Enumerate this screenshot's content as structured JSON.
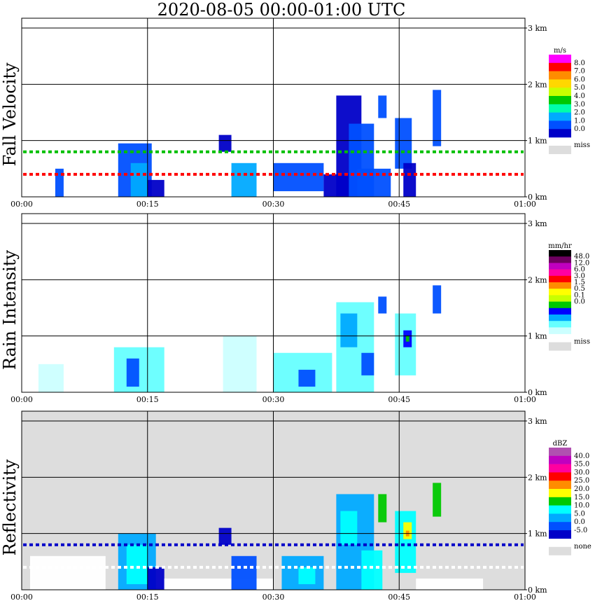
{
  "title": "2020-08-05   00:00-01:00 UTC",
  "chart_data": [
    {
      "type": "heatmap",
      "ylabel": "Fall Velocity",
      "x_ticks": [
        "00:00",
        "00:15",
        "00:30",
        "00:45",
        "01:00"
      ],
      "y_ticks": [
        "0 km",
        "1 km",
        "2 km",
        "3 km"
      ],
      "xlim": [
        0,
        60
      ],
      "ylim": [
        0,
        3
      ],
      "grid": true,
      "background": "#ffffff",
      "colorbar": {
        "unit": "m/s",
        "labels": [
          "8.0",
          "7.0",
          "6.0",
          "5.0",
          "4.0",
          "3.0",
          "2.0",
          "1.0",
          "0.0"
        ],
        "colors": [
          "#ff00ff",
          "#ff0000",
          "#ff8c00",
          "#ffd700",
          "#c8ff00",
          "#00c800",
          "#00ffaa",
          "#00aaff",
          "#0050ff",
          "#0000c8"
        ],
        "missing_label": "miss",
        "missing_color": "#dddddd"
      },
      "bands": [
        {
          "y": 0.4,
          "color": "#ff0000",
          "start": 0,
          "end": 60
        },
        {
          "y": 0.8,
          "color": "#00c000",
          "start": 0,
          "end": 60
        }
      ],
      "cells": [
        {
          "t": [
            11.5,
            15.5
          ],
          "h": [
            0,
            0.95
          ],
          "color": "#0050ff"
        },
        {
          "t": [
            13,
            15
          ],
          "h": [
            0,
            0.6
          ],
          "color": "#00aaff"
        },
        {
          "t": [
            15,
            17
          ],
          "h": [
            0,
            0.3
          ],
          "color": "#0000c8"
        },
        {
          "t": [
            4,
            5
          ],
          "h": [
            0,
            0.5
          ],
          "color": "#0050ff"
        },
        {
          "t": [
            23.5,
            25
          ],
          "h": [
            0.8,
            1.1
          ],
          "color": "#0000c8"
        },
        {
          "t": [
            25,
            28
          ],
          "h": [
            0,
            0.6
          ],
          "color": "#00aaff"
        },
        {
          "t": [
            30,
            36
          ],
          "h": [
            0.1,
            0.6
          ],
          "color": "#0050ff"
        },
        {
          "t": [
            36,
            39
          ],
          "h": [
            0,
            0.4
          ],
          "color": "#0000c8"
        },
        {
          "t": [
            37.5,
            40.5
          ],
          "h": [
            0,
            1.8
          ],
          "color": "#0000c8"
        },
        {
          "t": [
            39,
            42
          ],
          "h": [
            0,
            1.3
          ],
          "color": "#0050ff"
        },
        {
          "t": [
            40,
            44
          ],
          "h": [
            0,
            0.5
          ],
          "color": "#0050ff"
        },
        {
          "t": [
            42.5,
            43.5
          ],
          "h": [
            1.4,
            1.8
          ],
          "color": "#0050ff"
        },
        {
          "t": [
            44.5,
            46.5
          ],
          "h": [
            0.5,
            1.4
          ],
          "color": "#0050ff"
        },
        {
          "t": [
            45.5,
            47
          ],
          "h": [
            0,
            0.6
          ],
          "color": "#0000c8"
        },
        {
          "t": [
            49,
            50
          ],
          "h": [
            0.9,
            1.9
          ],
          "color": "#0050ff"
        }
      ]
    },
    {
      "type": "heatmap",
      "ylabel": "Rain Intensity",
      "x_ticks": [
        "00:00",
        "00:15",
        "00:30",
        "00:45",
        "01:00"
      ],
      "y_ticks": [
        "0 km",
        "1 km",
        "2 km",
        "3 km"
      ],
      "xlim": [
        0,
        60
      ],
      "ylim": [
        0,
        3
      ],
      "grid": true,
      "background": "#ffffff",
      "colorbar": {
        "unit": "mm/hr",
        "labels": [
          "48.0",
          "12.0",
          "6.0",
          "3.0",
          "1.5",
          "0.5",
          "0.1",
          "0.0"
        ],
        "colors": [
          "#000000",
          "#6e0060",
          "#c000c0",
          "#ff00a0",
          "#ff0000",
          "#ff8c00",
          "#ffff00",
          "#c8ff00",
          "#00c800",
          "#0000ff",
          "#00aaff",
          "#66ffff",
          "#ccffff"
        ],
        "missing_label": "miss",
        "missing_color": "#dddddd"
      },
      "bands": [],
      "cells": [
        {
          "t": [
            11,
            17
          ],
          "h": [
            0,
            0.8
          ],
          "color": "#66ffff"
        },
        {
          "t": [
            12.5,
            14
          ],
          "h": [
            0.1,
            0.6
          ],
          "color": "#0050ff"
        },
        {
          "t": [
            2,
            5
          ],
          "h": [
            0,
            0.5
          ],
          "color": "#ccffff"
        },
        {
          "t": [
            24,
            28
          ],
          "h": [
            0,
            1.0
          ],
          "color": "#ccffff"
        },
        {
          "t": [
            30,
            37
          ],
          "h": [
            0,
            0.7
          ],
          "color": "#66ffff"
        },
        {
          "t": [
            33,
            35
          ],
          "h": [
            0.1,
            0.4
          ],
          "color": "#0050ff"
        },
        {
          "t": [
            37.5,
            42
          ],
          "h": [
            0,
            1.6
          ],
          "color": "#66ffff"
        },
        {
          "t": [
            38,
            40
          ],
          "h": [
            0.8,
            1.4
          ],
          "color": "#00aaff"
        },
        {
          "t": [
            40.5,
            42
          ],
          "h": [
            0.3,
            0.7
          ],
          "color": "#0050ff"
        },
        {
          "t": [
            42.5,
            43.5
          ],
          "h": [
            1.4,
            1.7
          ],
          "color": "#0050ff"
        },
        {
          "t": [
            44.5,
            47
          ],
          "h": [
            0.3,
            1.4
          ],
          "color": "#66ffff"
        },
        {
          "t": [
            45.5,
            46.5
          ],
          "h": [
            0.8,
            1.1
          ],
          "color": "#0000ff"
        },
        {
          "t": [
            45.8,
            46.2
          ],
          "h": [
            0.9,
            1.0
          ],
          "color": "#00c800"
        },
        {
          "t": [
            49,
            50
          ],
          "h": [
            1.4,
            1.9
          ],
          "color": "#0050ff"
        }
      ]
    },
    {
      "type": "heatmap",
      "ylabel": "Reflectivity",
      "x_ticks": [
        "00:00",
        "00:15",
        "00:30",
        "00:45",
        "01:00"
      ],
      "y_ticks": [
        "0 km",
        "1 km",
        "2 km",
        "3 km"
      ],
      "xlim": [
        0,
        60
      ],
      "ylim": [
        0,
        3
      ],
      "grid": true,
      "background": "#dddddd",
      "colorbar": {
        "unit": "dBZ",
        "labels": [
          "40.0",
          "35.0",
          "30.0",
          "25.0",
          "20.0",
          "15.0",
          "10.0",
          "5.0",
          "0.0",
          "-5.0"
        ],
        "colors": [
          "#b050b0",
          "#c000c0",
          "#ff00a0",
          "#ff0000",
          "#ff8c00",
          "#ffff00",
          "#00c800",
          "#00ffff",
          "#00aaff",
          "#0050ff",
          "#0000c8"
        ],
        "missing_label": "none",
        "missing_color": "#dddddd"
      },
      "bands": [
        {
          "y": 0.4,
          "color": "#ffffff",
          "start": 0,
          "end": 60
        },
        {
          "y": 0.8,
          "color": "#0000c8",
          "start": 0,
          "end": 60
        }
      ],
      "cells": [
        {
          "t": [
            1,
            10
          ],
          "h": [
            0,
            0.6
          ],
          "color": "#ffffff"
        },
        {
          "t": [
            11.5,
            16
          ],
          "h": [
            0,
            1.0
          ],
          "color": "#00aaff"
        },
        {
          "t": [
            12.5,
            15
          ],
          "h": [
            0.1,
            0.8
          ],
          "color": "#00ffff"
        },
        {
          "t": [
            15,
            17
          ],
          "h": [
            0,
            0.4
          ],
          "color": "#0000c8"
        },
        {
          "t": [
            17,
            30
          ],
          "h": [
            0,
            0.2
          ],
          "color": "#ffffff"
        },
        {
          "t": [
            23.5,
            25
          ],
          "h": [
            0.8,
            1.1
          ],
          "color": "#0000c8"
        },
        {
          "t": [
            25,
            28
          ],
          "h": [
            0,
            0.6
          ],
          "color": "#0050ff"
        },
        {
          "t": [
            31,
            36
          ],
          "h": [
            0,
            0.6
          ],
          "color": "#00aaff"
        },
        {
          "t": [
            33,
            35
          ],
          "h": [
            0.1,
            0.4
          ],
          "color": "#00ffff"
        },
        {
          "t": [
            37.5,
            42
          ],
          "h": [
            0,
            1.7
          ],
          "color": "#00aaff"
        },
        {
          "t": [
            38,
            40
          ],
          "h": [
            0.8,
            1.4
          ],
          "color": "#00ffff"
        },
        {
          "t": [
            40.5,
            43
          ],
          "h": [
            0,
            0.7
          ],
          "color": "#00ffff"
        },
        {
          "t": [
            42.5,
            43.5
          ],
          "h": [
            1.2,
            1.7
          ],
          "color": "#00c800"
        },
        {
          "t": [
            44.5,
            47
          ],
          "h": [
            0.3,
            1.4
          ],
          "color": "#00ffff"
        },
        {
          "t": [
            45.5,
            46.5
          ],
          "h": [
            0.9,
            1.2
          ],
          "color": "#ffff00"
        },
        {
          "t": [
            45.8,
            46.2
          ],
          "h": [
            0.95,
            1.05
          ],
          "color": "#ff8c00"
        },
        {
          "t": [
            49,
            50
          ],
          "h": [
            1.3,
            1.9
          ],
          "color": "#00c800"
        },
        {
          "t": [
            47,
            55
          ],
          "h": [
            0,
            0.2
          ],
          "color": "#ffffff"
        }
      ]
    }
  ]
}
